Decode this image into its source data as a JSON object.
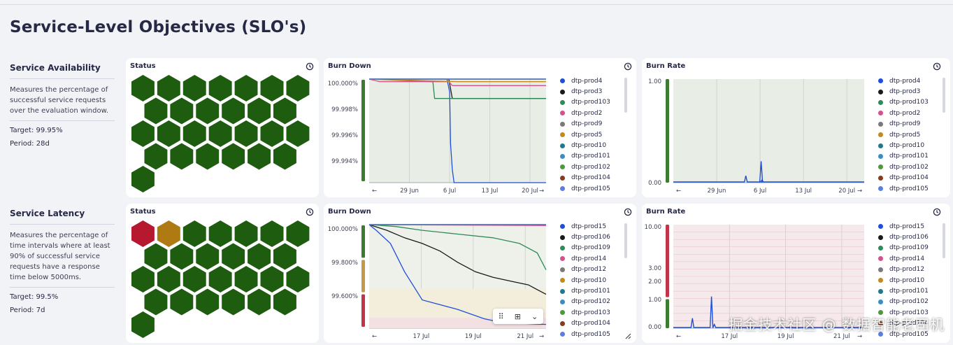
{
  "page": {
    "title": "Service-Level Objectives (SLO's)"
  },
  "slos": [
    {
      "name": "Service Availability",
      "description": "Measures the percentage of successful service requests over the evaluation window.",
      "target": "Target: 99.95%",
      "period": "Period: 28d",
      "status_title": "Status",
      "status_hexes": [
        "good",
        "good",
        "good",
        "good",
        "good",
        "good",
        "good",
        "good",
        "good",
        "good",
        "good",
        "good",
        "good",
        "good",
        "good",
        "good",
        "good",
        "good",
        "good",
        "good",
        "good",
        "good",
        "good",
        "good",
        "good",
        "good",
        "good"
      ],
      "burn_down": {
        "title": "Burn Down",
        "chart_data": {
          "type": "line",
          "x_ticks": [
            "29 Jun",
            "6 Jul",
            "13 Jul",
            "20 Jul"
          ],
          "y_ticks": [
            "100.000%",
            "99.998%",
            "99.996%",
            "99.994%"
          ],
          "ylim": [
            99.992,
            100.0
          ],
          "band_colors": [
            "#3d7a32"
          ],
          "series": [
            {
              "name": "dtp-prod4",
              "color": "#1f4fd8",
              "points": [
                [
                  0,
                  100.0
                ],
                [
                  0.44,
                  100.0
                ],
                [
                  0.455,
                  99.999
                ],
                [
                  0.46,
                  99.995
                ],
                [
                  0.47,
                  99.993
                ],
                [
                  0.48,
                  99.992
                ],
                [
                  1,
                  99.992
                ]
              ]
            },
            {
              "name": "dtp-prod3",
              "color": "#1a1a1a",
              "points": [
                [
                  0,
                  100.0
                ],
                [
                  0.45,
                  100.0
                ],
                [
                  0.47,
                  99.9985
                ],
                [
                  1,
                  99.9985
                ]
              ]
            },
            {
              "name": "dtp-prod103",
              "color": "#2e8b57",
              "points": [
                [
                  0,
                  100.0
                ],
                [
                  0.36,
                  99.9998
                ],
                [
                  0.37,
                  99.9985
                ],
                [
                  1,
                  99.9985
                ]
              ]
            },
            {
              "name": "dtp-prod2",
              "color": "#d4508f",
              "points": [
                [
                  0,
                  100.0
                ],
                [
                  0.06,
                  99.9998
                ],
                [
                  0.45,
                  99.9998
                ],
                [
                  0.47,
                  99.9995
                ],
                [
                  1,
                  99.9995
                ]
              ]
            },
            {
              "name": "dtp-prod9",
              "color": "#7a7a7a",
              "points": [
                [
                  0,
                  100.0
                ],
                [
                  1,
                  100.0
                ]
              ]
            },
            {
              "name": "dtp-prod5",
              "color": "#c48a1d",
              "points": [
                [
                  0,
                  100.0
                ],
                [
                  0.5,
                  99.9998
                ],
                [
                  1,
                  99.9998
                ]
              ]
            },
            {
              "name": "dtp-prod10",
              "color": "#1f7a8c",
              "points": [
                [
                  0,
                  100.0
                ],
                [
                  1,
                  100.0
                ]
              ]
            },
            {
              "name": "dtp-prod101",
              "color": "#3a8fbf",
              "points": [
                [
                  0,
                  100.0
                ],
                [
                  1,
                  100.0
                ]
              ]
            },
            {
              "name": "dtp-prod102",
              "color": "#4e9a3a",
              "points": [
                [
                  0,
                  100.0
                ],
                [
                  1,
                  100.0
                ]
              ]
            },
            {
              "name": "dtp-prod104",
              "color": "#8b3a1a",
              "points": [
                [
                  0,
                  100.0
                ],
                [
                  1,
                  100.0
                ]
              ]
            },
            {
              "name": "dtp-prod105",
              "color": "#5b7fe0",
              "points": [
                [
                  0,
                  100.0
                ],
                [
                  1,
                  100.0
                ]
              ]
            }
          ]
        }
      },
      "burn_rate": {
        "title": "Burn Rate",
        "chart_data": {
          "type": "line",
          "x_ticks": [
            "29 Jun",
            "6 Jul",
            "13 Jul",
            "20 Jul"
          ],
          "y_ticks": [
            "1.00",
            "0.00"
          ],
          "ylim": [
            0,
            1.0
          ],
          "band_colors": [
            "#3d7a32"
          ],
          "series_name": "dtp-prod4",
          "spikes": [
            [
              0.38,
              0.06
            ],
            [
              0.46,
              0.2
            ],
            [
              0.465,
              0.02
            ]
          ],
          "legend": [
            "dtp-prod4",
            "dtp-prod3",
            "dtp-prod103",
            "dtp-prod2",
            "dtp-prod9",
            "dtp-prod5",
            "dtp-prod10",
            "dtp-prod101",
            "dtp-prod102",
            "dtp-prod104",
            "dtp-prod105"
          ]
        }
      }
    },
    {
      "name": "Service Latency",
      "description": "Measures the percentage of time intervals where at least 90% of successful service requests have a response time below 5000ms.",
      "target": "Target: 99.5%",
      "period": "Period: 7d",
      "status_title": "Status",
      "status_hexes": [
        "bad",
        "warn",
        "good",
        "good",
        "good",
        "good",
        "good",
        "good",
        "good",
        "good",
        "good",
        "good",
        "good",
        "good",
        "good",
        "good",
        "good",
        "good",
        "good",
        "good",
        "good",
        "good",
        "good",
        "good",
        "good",
        "good",
        "good"
      ],
      "burn_down": {
        "title": "Burn Down",
        "chart_data": {
          "type": "line",
          "x_ticks": [
            "17 Jul",
            "19 Jul",
            "21 Jul"
          ],
          "y_ticks": [
            "100.000%",
            "99.800%",
            "99.600%"
          ],
          "ylim": [
            99.45,
            100.0
          ],
          "band_colors": [
            "#3d7a32",
            "#c49a4a",
            "#c0354a"
          ],
          "series": [
            {
              "name": "dtp-prod15",
              "color": "#1f4fd8",
              "points": [
                [
                  0,
                  100.0
                ],
                [
                  0.04,
                  99.97
                ],
                [
                  0.12,
                  99.9
                ],
                [
                  0.2,
                  99.75
                ],
                [
                  0.3,
                  99.6
                ],
                [
                  0.5,
                  99.55
                ],
                [
                  0.65,
                  99.5
                ],
                [
                  0.75,
                  99.48
                ],
                [
                  1,
                  99.47
                ]
              ]
            },
            {
              "name": "dtp-prod106",
              "color": "#1a1a1a",
              "points": [
                [
                  0,
                  100.0
                ],
                [
                  0.1,
                  99.97
                ],
                [
                  0.2,
                  99.93
                ],
                [
                  0.3,
                  99.9
                ],
                [
                  0.4,
                  99.86
                ],
                [
                  0.5,
                  99.8
                ],
                [
                  0.6,
                  99.75
                ],
                [
                  0.7,
                  99.72
                ],
                [
                  0.8,
                  99.7
                ],
                [
                  0.9,
                  99.68
                ],
                [
                  1,
                  99.63
                ]
              ]
            },
            {
              "name": "dtp-prod109",
              "color": "#2e8b57",
              "points": [
                [
                  0,
                  100.0
                ],
                [
                  0.15,
                  99.99
                ],
                [
                  0.3,
                  99.97
                ],
                [
                  0.5,
                  99.95
                ],
                [
                  0.7,
                  99.93
                ],
                [
                  0.85,
                  99.9
                ],
                [
                  0.95,
                  99.85
                ],
                [
                  1,
                  99.76
                ]
              ]
            },
            {
              "name": "dtp-prod14",
              "color": "#d4508f",
              "points": [
                [
                  0,
                  100.0
                ],
                [
                  1,
                  99.995
                ]
              ]
            },
            {
              "name": "dtp-prod12",
              "color": "#7a7a7a",
              "points": [
                [
                  0,
                  100.0
                ],
                [
                  1,
                  100.0
                ]
              ]
            },
            {
              "name": "dtp-prod10",
              "color": "#c48a1d",
              "points": [
                [
                  0,
                  100.0
                ],
                [
                  1,
                  100.0
                ]
              ]
            },
            {
              "name": "dtp-prod101",
              "color": "#3a8fbf",
              "points": [
                [
                  0,
                  100.0
                ],
                [
                  1,
                  100.0
                ]
              ]
            },
            {
              "name": "dtp-prod102",
              "color": "#1f7a8c",
              "points": [
                [
                  0,
                  100.0
                ],
                [
                  1,
                  100.0
                ]
              ]
            },
            {
              "name": "dtp-prod103",
              "color": "#4e9a3a",
              "points": [
                [
                  0,
                  100.0
                ],
                [
                  1,
                  100.0
                ]
              ]
            },
            {
              "name": "dtp-prod104",
              "color": "#8b3a1a",
              "points": [
                [
                  0,
                  100.0
                ],
                [
                  1,
                  100.0
                ]
              ]
            },
            {
              "name": "dtp-prod105",
              "color": "#5b7fe0",
              "points": [
                [
                  0,
                  100.0
                ],
                [
                  1,
                  100.0
                ]
              ]
            }
          ]
        }
      },
      "burn_rate": {
        "title": "Burn Rate",
        "chart_data": {
          "type": "line",
          "x_ticks": [
            "17 Jul",
            "19 Jul",
            "21 Jul"
          ],
          "y_ticks": [
            "10.00",
            "3.00",
            "2.00",
            "1.00",
            "0.00"
          ],
          "ylim": [
            0,
            10.0
          ],
          "band_colors": [
            "#c0354a",
            "#3d7a32"
          ],
          "series_name": "dtp-prod15",
          "spikes": [
            [
              0.1,
              0.3
            ],
            [
              0.2,
              1.0
            ],
            [
              0.215,
              0.1
            ]
          ],
          "legend": [
            "dtp-prod15",
            "dtp-prod106",
            "dtp-prod109",
            "dtp-prod14",
            "dtp-prod12",
            "dtp-prod10",
            "dtp-prod101",
            "dtp-prod102",
            "dtp-prod103",
            "dtp-prod104",
            "dtp-prod105"
          ]
        }
      }
    }
  ],
  "legend_colors": [
    "#1f4fd8",
    "#1a1a1a",
    "#2e8b57",
    "#d4508f",
    "#7a7a7a",
    "#c48a1d",
    "#1f7a8c",
    "#3a8fbf",
    "#4e9a3a",
    "#8b3a1a",
    "#5b7fe0"
  ],
  "status_colors": {
    "good": "#1e5c0f",
    "warn": "#b07a12",
    "bad": "#b5182f"
  },
  "watermark": "掘金技术社区 @ 数据智能老司机"
}
